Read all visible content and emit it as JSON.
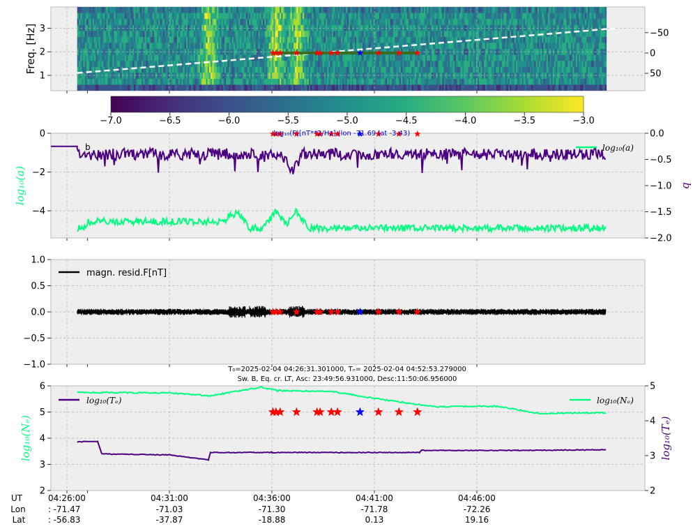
{
  "chart_data": [
    {
      "type": "heatmap",
      "ylabel": "Freq. [Hz]",
      "y_ticks": [
        "1",
        "2",
        "3"
      ],
      "y2_ticks": [
        "50",
        "0",
        "−50"
      ],
      "colorbar": {
        "ticks": [
          "−7.0",
          "−6.5",
          "−6.0",
          "−5.5",
          "−5.0",
          "−4.5",
          "−4.0",
          "−3.5",
          "−3.0"
        ],
        "label": "log₁₀(F)[nT**2/Hz] (lon -71.69 lat -3.43)",
        "range": [
          -7.0,
          -3.0
        ],
        "colormap": "viridis"
      },
      "overlay_line": {
        "style": "white-dashed",
        "from": [
          0,
          1.1
        ],
        "to": [
          1,
          3.0
        ]
      },
      "bright_bands_min": [
        6.9,
        10.2,
        11.2
      ]
    },
    {
      "type": "line",
      "ylabel": "log₁₀(a)",
      "y2label": "b",
      "y_ticks": [
        "0",
        "−2",
        "−4"
      ],
      "y2_ticks": [
        "0.0",
        "−0.5",
        "−1.0",
        "−1.5",
        "−2.0"
      ],
      "ylim": [
        -5.4,
        0
      ],
      "y2lim": [
        -2.0,
        0
      ],
      "legend": "log₁₀(a)",
      "corner_label": "b",
      "series": [
        {
          "name": "b",
          "color": "#4b0082",
          "axis": "right",
          "mean": -0.4,
          "dip_min": 11.0
        },
        {
          "name": "log₁₀(a)",
          "color": "#00ff7f",
          "axis": "left",
          "mean": -4.9,
          "bumps_min": [
            8.3,
            10.2,
            11.2
          ]
        }
      ]
    },
    {
      "type": "line",
      "legend": "magn. resid.F[nT]",
      "y_ticks": [
        "1.0",
        "0.5",
        "0.0",
        "−0.5",
        "−1.0"
      ],
      "ylim": [
        -1.0,
        1.0
      ],
      "series": [
        {
          "name": "magn. resid.F[nT]",
          "color": "#000000",
          "amplitude": 0.06
        }
      ]
    },
    {
      "type": "line",
      "title_lines": [
        "T₀=2025-02-04 04:26:31.301000, Tₙ= 2025-02-04 04:52:53.279000",
        "Sw. B, Eq. cr. LT, Asc: 23:49:56.931000, Desc:11:50:06.956000"
      ],
      "ylabel": "log₁₀(Nₑ)",
      "y2label": "log₁₀(Tₑ)",
      "y_ticks": [
        "6",
        "5",
        "4",
        "3",
        "2"
      ],
      "y2_ticks": [
        "5",
        "4",
        "3",
        "2"
      ],
      "ylim": [
        2,
        6
      ],
      "y2lim": [
        2,
        5
      ],
      "legend_left": "log₁₀(Tₑ)",
      "legend_right": "log₁₀(Nₑ)",
      "series": [
        {
          "name": "log₁₀(Nₑ)",
          "color": "#00ff7f",
          "axis": "left",
          "x_min": [
            0.5,
            5,
            7,
            9.5,
            10.3,
            13,
            15,
            18,
            21,
            23,
            26.3
          ],
          "y": [
            5.75,
            5.73,
            5.62,
            5.95,
            5.82,
            5.78,
            5.52,
            5.2,
            5.22,
            4.95,
            4.97
          ]
        },
        {
          "name": "log₁₀(Tₑ)",
          "color": "#4b0082",
          "axis": "right",
          "x_min": [
            0.5,
            1.5,
            1.7,
            5,
            6.9,
            7.0,
            10,
            13.5,
            17.2,
            17.3,
            22,
            26.3
          ],
          "y": [
            3.4,
            3.4,
            3.05,
            3.02,
            2.88,
            3.09,
            3.09,
            3.09,
            3.09,
            3.15,
            3.15,
            3.17
          ]
        }
      ]
    }
  ],
  "xaxis": {
    "row_labels": [
      "UT",
      "Lon",
      "Lat"
    ],
    "prefix": ":",
    "ticks": [
      {
        "ut": "04:26:00",
        "lon": "-71.47",
        "lat": "-56.83"
      },
      {
        "ut": "04:31:00",
        "lon": "-71.03",
        "lat": "-37.87"
      },
      {
        "ut": "04:36:00",
        "lon": "-71.30",
        "lat": "-18.88"
      },
      {
        "ut": "04:41:00",
        "lon": "-71.78",
        "lat": "0.13"
      },
      {
        "ut": "04:46:00",
        "lon": "-72.26",
        "lat": "19.16"
      }
    ]
  },
  "events": {
    "red_star_min": [
      10.05,
      10.2,
      10.4,
      11.2,
      12.2,
      12.35,
      12.9,
      13.2,
      15.2,
      16.2,
      17.1
    ],
    "blue_star_min": [
      14.3
    ],
    "red_color": "#ff0000",
    "blue_color": "#0000ff"
  }
}
